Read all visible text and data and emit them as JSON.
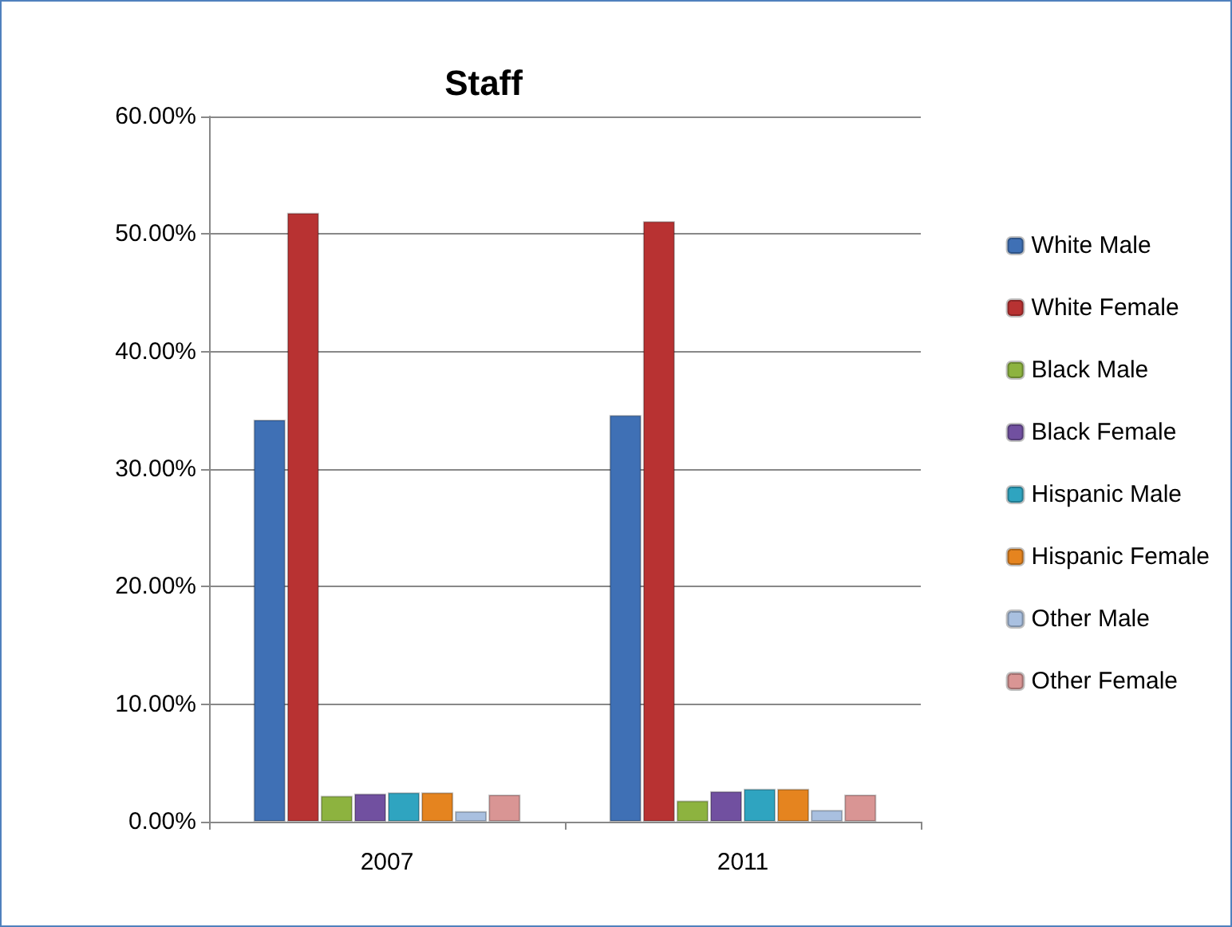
{
  "chart_data": {
    "type": "bar",
    "title": "Staff",
    "categories": [
      "2007",
      "2011"
    ],
    "series": [
      {
        "name": "White Male",
        "color": "#3f70b5",
        "values": [
          34.2,
          34.6
        ]
      },
      {
        "name": "White Female",
        "color": "#b83232",
        "values": [
          51.8,
          51.1
        ]
      },
      {
        "name": "Black Male",
        "color": "#8db33f",
        "values": [
          2.2,
          1.8
        ]
      },
      {
        "name": "Black Female",
        "color": "#7150a0",
        "values": [
          2.4,
          2.6
        ]
      },
      {
        "name": "Hispanic Male",
        "color": "#2fa4c0",
        "values": [
          2.5,
          2.8
        ]
      },
      {
        "name": "Hispanic Female",
        "color": "#e5841f",
        "values": [
          2.5,
          2.8
        ]
      },
      {
        "name": "Other Male",
        "color": "#a9c0e0",
        "values": [
          0.9,
          1.0
        ]
      },
      {
        "name": "Other Female",
        "color": "#d99594",
        "values": [
          2.3,
          2.3
        ]
      }
    ],
    "ylim": [
      0,
      60
    ],
    "yticks": [
      {
        "value": 0,
        "label": "0.00%"
      },
      {
        "value": 10,
        "label": "10.00%"
      },
      {
        "value": 20,
        "label": "20.00%"
      },
      {
        "value": 30,
        "label": "30.00%"
      },
      {
        "value": 40,
        "label": "40.00%"
      },
      {
        "value": 50,
        "label": "50.00%"
      },
      {
        "value": 60,
        "label": "60.00%"
      }
    ],
    "grid": "y",
    "legend": "right"
  }
}
